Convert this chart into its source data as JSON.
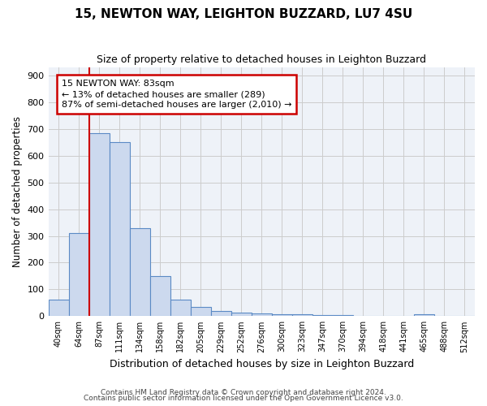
{
  "title1": "15, NEWTON WAY, LEIGHTON BUZZARD, LU7 4SU",
  "title2": "Size of property relative to detached houses in Leighton Buzzard",
  "xlabel": "Distribution of detached houses by size in Leighton Buzzard",
  "ylabel": "Number of detached properties",
  "footer1": "Contains HM Land Registry data © Crown copyright and database right 2024.",
  "footer2": "Contains public sector information licensed under the Open Government Licence v3.0.",
  "categories": [
    "40sqm",
    "64sqm",
    "87sqm",
    "111sqm",
    "134sqm",
    "158sqm",
    "182sqm",
    "205sqm",
    "229sqm",
    "252sqm",
    "276sqm",
    "300sqm",
    "323sqm",
    "347sqm",
    "370sqm",
    "394sqm",
    "418sqm",
    "441sqm",
    "465sqm",
    "488sqm",
    "512sqm"
  ],
  "values": [
    62,
    310,
    685,
    650,
    330,
    150,
    63,
    35,
    20,
    12,
    9,
    8,
    7,
    5,
    3,
    2,
    1,
    0,
    8,
    2,
    1
  ],
  "bar_color": "#ccd9ee",
  "bar_edge_color": "#5b8ac5",
  "property_line_idx": 2,
  "annotation_text": "15 NEWTON WAY: 83sqm\n← 13% of detached houses are smaller (289)\n87% of semi-detached houses are larger (2,010) →",
  "annotation_box_color": "#ffffff",
  "annotation_box_edge": "#cc0000",
  "red_line_color": "#cc0000",
  "ylim": [
    0,
    930
  ],
  "yticks": [
    0,
    100,
    200,
    300,
    400,
    500,
    600,
    700,
    800,
    900
  ],
  "grid_color": "#cccccc",
  "bg_color": "#eef2f8",
  "title1_fontsize": 11,
  "title2_fontsize": 9
}
